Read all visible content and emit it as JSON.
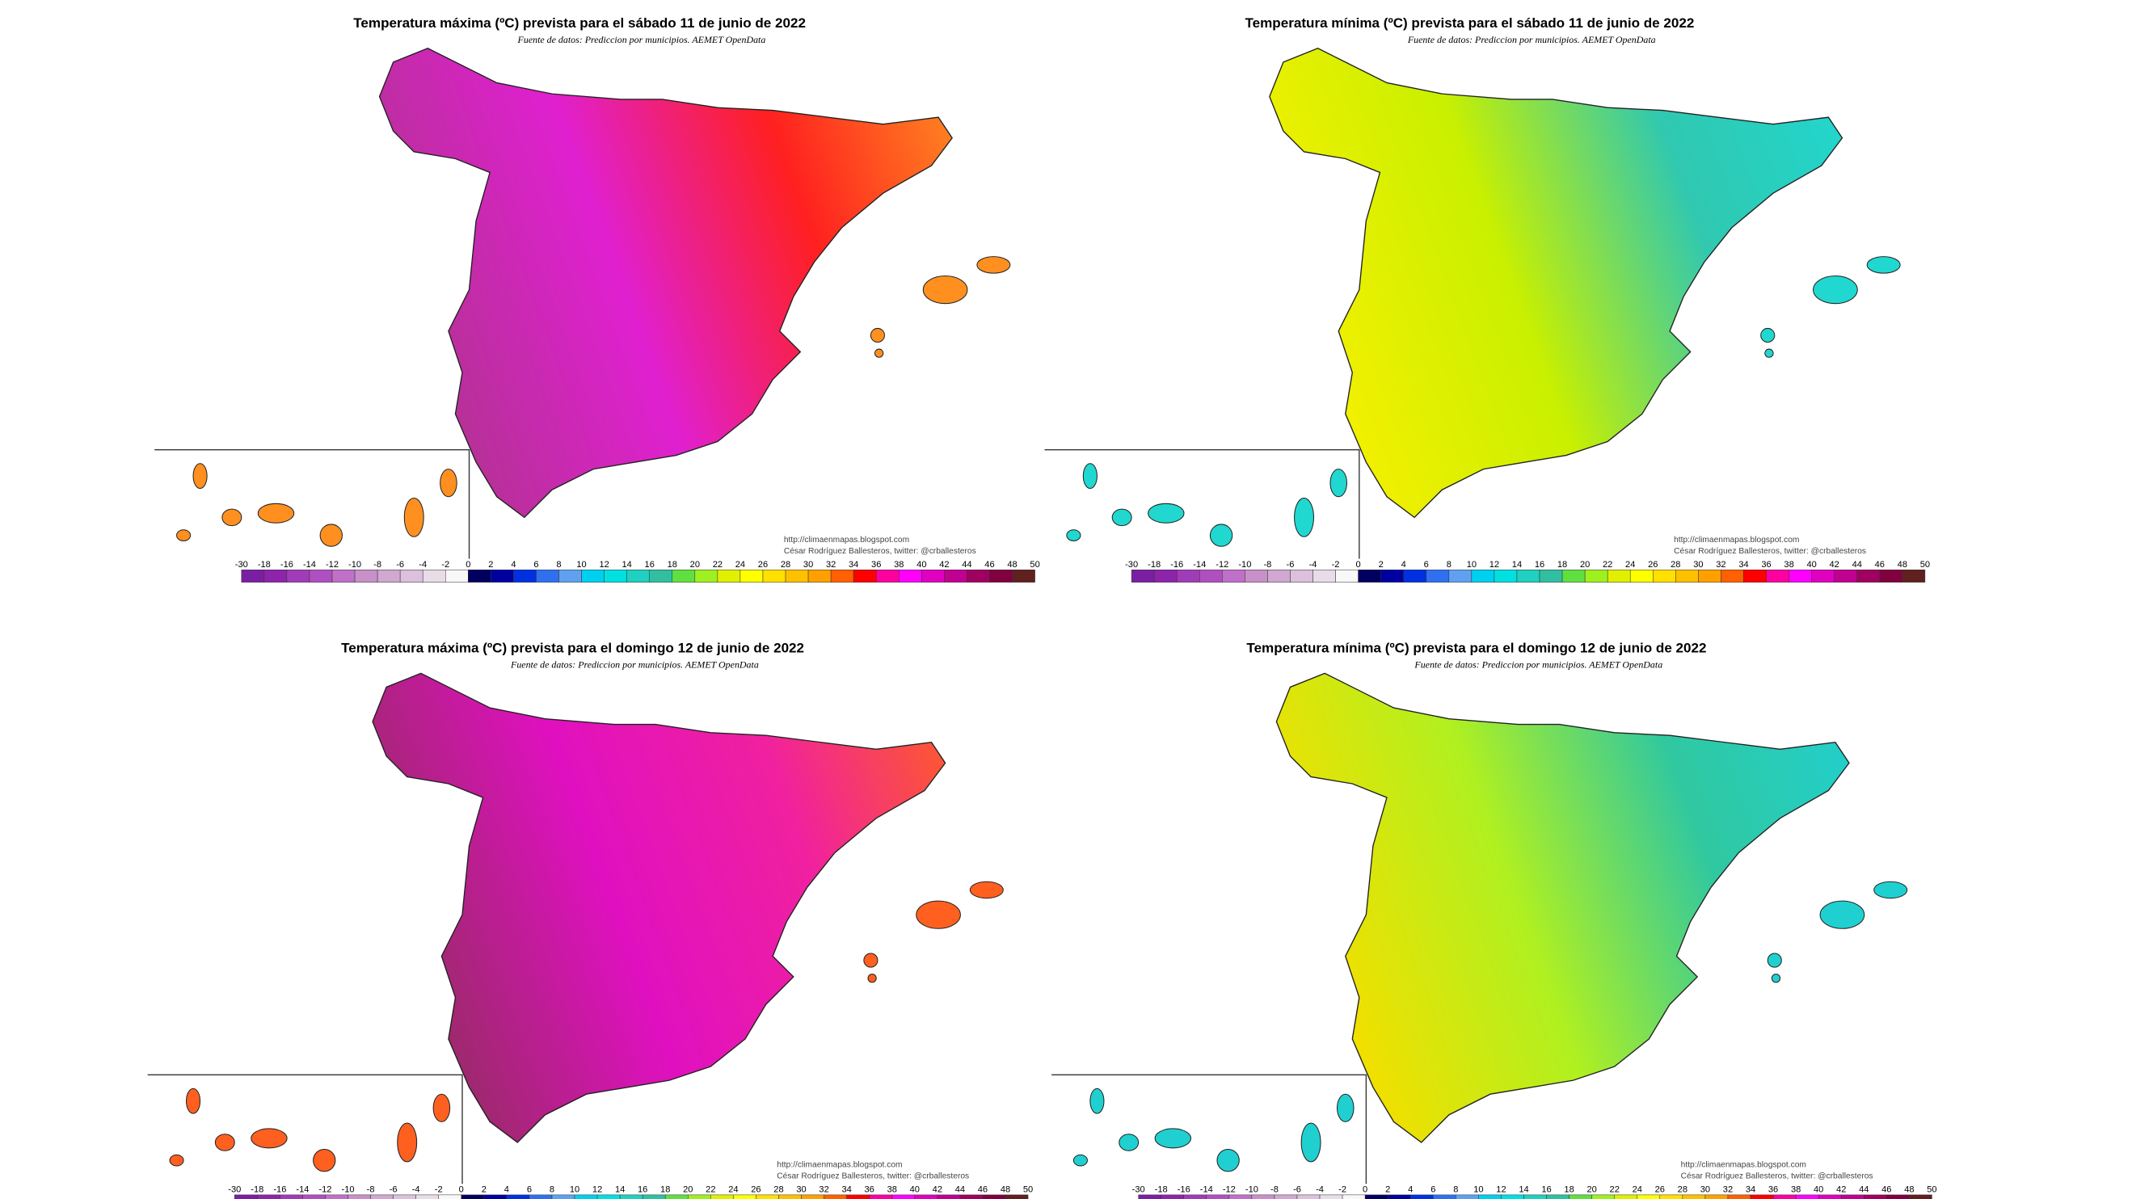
{
  "maps": [
    {
      "title": "Temperatura máxima (ºC) prevista para el sábado 11 de junio de 2022",
      "source": "Fuente de datos: Prediccion por municipios. AEMET OpenData",
      "url": "http://climaenmapas.blogspot.com",
      "author": "César Rodríguez Ballesteros, twitter: @crballesteros",
      "palette": [
        "#b8309a",
        "#e020d0",
        "#ff2020",
        "#ff9020"
      ]
    },
    {
      "title": "Temperatura mínima (ºC) prevista para el sábado 11 de junio de 2022",
      "source": "Fuente de datos: Prediccion por municipios. AEMET OpenData",
      "url": "http://climaenmapas.blogspot.com",
      "author": "César Rodríguez Ballesteros, twitter: @crballesteros",
      "palette": [
        "#f0f000",
        "#c8f000",
        "#30c8b0",
        "#20d8d0"
      ]
    },
    {
      "title": "Temperatura máxima (ºC) prevista para el domingo 12 de junio de 2022",
      "source": "Fuente de datos: Prediccion por municipios. AEMET OpenData",
      "url": "http://climaenmapas.blogspot.com",
      "author": "César Rodríguez Ballesteros, twitter: @crballesteros",
      "palette": [
        "#a02870",
        "#e010c0",
        "#f020a0",
        "#ff6020"
      ]
    },
    {
      "title": "Temperatura mínima (ºC) prevista para el domingo 12 de junio de 2022",
      "source": "Fuente de datos: Prediccion por municipios. AEMET OpenData",
      "url": "http://climaenmapas.blogspot.com",
      "author": "César Rodríguez Ballesteros, twitter: @crballesteros",
      "palette": [
        "#f0e000",
        "#b0f020",
        "#30c8a0",
        "#20d0d0"
      ]
    }
  ],
  "colorbar": {
    "ticks": [
      -30,
      -18,
      -16,
      -14,
      -12,
      -10,
      -8,
      -6,
      -4,
      -2,
      0,
      2,
      4,
      6,
      8,
      10,
      12,
      14,
      16,
      18,
      20,
      22,
      24,
      26,
      28,
      30,
      32,
      34,
      36,
      38,
      40,
      42,
      44,
      46,
      48,
      50
    ],
    "colors": [
      "#7b1fa2",
      "#8e24aa",
      "#a03cb8",
      "#b050c0",
      "#c070c8",
      "#c890c8",
      "#d0a8d0",
      "#dcc0dc",
      "#e8dce8",
      "#f8f8f8",
      "#000060",
      "#0000a0",
      "#0030e0",
      "#3070f0",
      "#60a0f0",
      "#00d0f0",
      "#00e0e0",
      "#20d0c0",
      "#30c0a0",
      "#60e040",
      "#a0f020",
      "#e0f000",
      "#ffff00",
      "#ffe000",
      "#ffc000",
      "#ffa000",
      "#ff6000",
      "#ff0000",
      "#ff00a0",
      "#ff00ff",
      "#e000c0",
      "#c00090",
      "#a00060",
      "#800040",
      "#602020"
    ]
  }
}
